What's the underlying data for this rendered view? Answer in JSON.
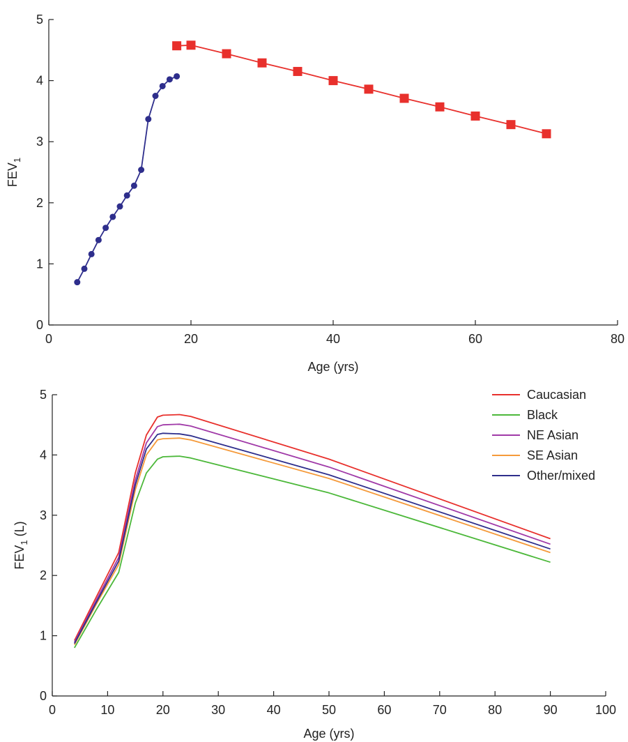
{
  "chart_data": [
    {
      "type": "line",
      "xlabel": "Age (yrs)",
      "ylabel_main": "FEV",
      "ylabel_sub": "1",
      "ylabel_unit": "",
      "xlim": [
        0,
        80
      ],
      "ylim": [
        0,
        5
      ],
      "xticks": [
        0,
        20,
        40,
        60,
        80
      ],
      "yticks": [
        0,
        1,
        2,
        3,
        4,
        5
      ],
      "grid": false,
      "series": [
        {
          "color": "#2e2e8c",
          "marker": "circle",
          "x": [
            4,
            5,
            6,
            7,
            8,
            9,
            10,
            11,
            12,
            13,
            14,
            15,
            16,
            17,
            18
          ],
          "y": [
            0.7,
            0.92,
            1.16,
            1.39,
            1.59,
            1.77,
            1.94,
            2.12,
            2.28,
            2.54,
            3.37,
            3.75,
            3.91,
            4.02,
            4.07
          ]
        },
        {
          "color": "#e8302c",
          "marker": "square",
          "x": [
            18,
            20,
            25,
            30,
            35,
            40,
            45,
            50,
            55,
            60,
            65,
            70
          ],
          "y": [
            4.57,
            4.58,
            4.44,
            4.29,
            4.15,
            4.0,
            3.86,
            3.71,
            3.57,
            3.42,
            3.28,
            3.13
          ]
        }
      ]
    },
    {
      "type": "line",
      "xlabel": "Age (yrs)",
      "ylabel_main": "FEV",
      "ylabel_sub": "1",
      "ylabel_unit": " (L)",
      "xlim": [
        0,
        100
      ],
      "ylim": [
        0,
        5
      ],
      "xticks": [
        0,
        10,
        20,
        30,
        40,
        50,
        60,
        70,
        80,
        90,
        100
      ],
      "yticks": [
        0,
        1,
        2,
        3,
        4,
        5
      ],
      "grid": false,
      "legend": "top-right",
      "series": [
        {
          "name": "Caucasian",
          "color": "#e8302c",
          "x": [
            4,
            8,
            12,
            15,
            17,
            19,
            20,
            23,
            25,
            50,
            90
          ],
          "y": [
            0.92,
            1.65,
            2.38,
            3.7,
            4.33,
            4.63,
            4.66,
            4.67,
            4.64,
            3.93,
            2.61
          ]
        },
        {
          "name": "Black",
          "color": "#4cb83a",
          "x": [
            4,
            8,
            12,
            15,
            17,
            19,
            20,
            23,
            25,
            50,
            90
          ],
          "y": [
            0.8,
            1.44,
            2.05,
            3.2,
            3.7,
            3.93,
            3.97,
            3.98,
            3.95,
            3.37,
            2.22
          ]
        },
        {
          "name": "NE Asian",
          "color": "#a03aa8",
          "x": [
            4,
            8,
            12,
            15,
            17,
            19,
            20,
            23,
            25,
            50,
            90
          ],
          "y": [
            0.89,
            1.6,
            2.3,
            3.58,
            4.2,
            4.47,
            4.5,
            4.51,
            4.48,
            3.8,
            2.52
          ]
        },
        {
          "name": "SE Asian",
          "color": "#f59a3a",
          "x": [
            4,
            8,
            12,
            15,
            17,
            19,
            20,
            23,
            25,
            50,
            90
          ],
          "y": [
            0.85,
            1.53,
            2.18,
            3.42,
            4.0,
            4.25,
            4.27,
            4.28,
            4.25,
            3.61,
            2.38
          ]
        },
        {
          "name": "Other/mixed",
          "color": "#2e2e8c",
          "x": [
            4,
            8,
            12,
            15,
            17,
            19,
            20,
            23,
            25,
            50,
            90
          ],
          "y": [
            0.87,
            1.56,
            2.24,
            3.5,
            4.1,
            4.34,
            4.36,
            4.35,
            4.32,
            3.67,
            2.44
          ]
        }
      ]
    }
  ]
}
